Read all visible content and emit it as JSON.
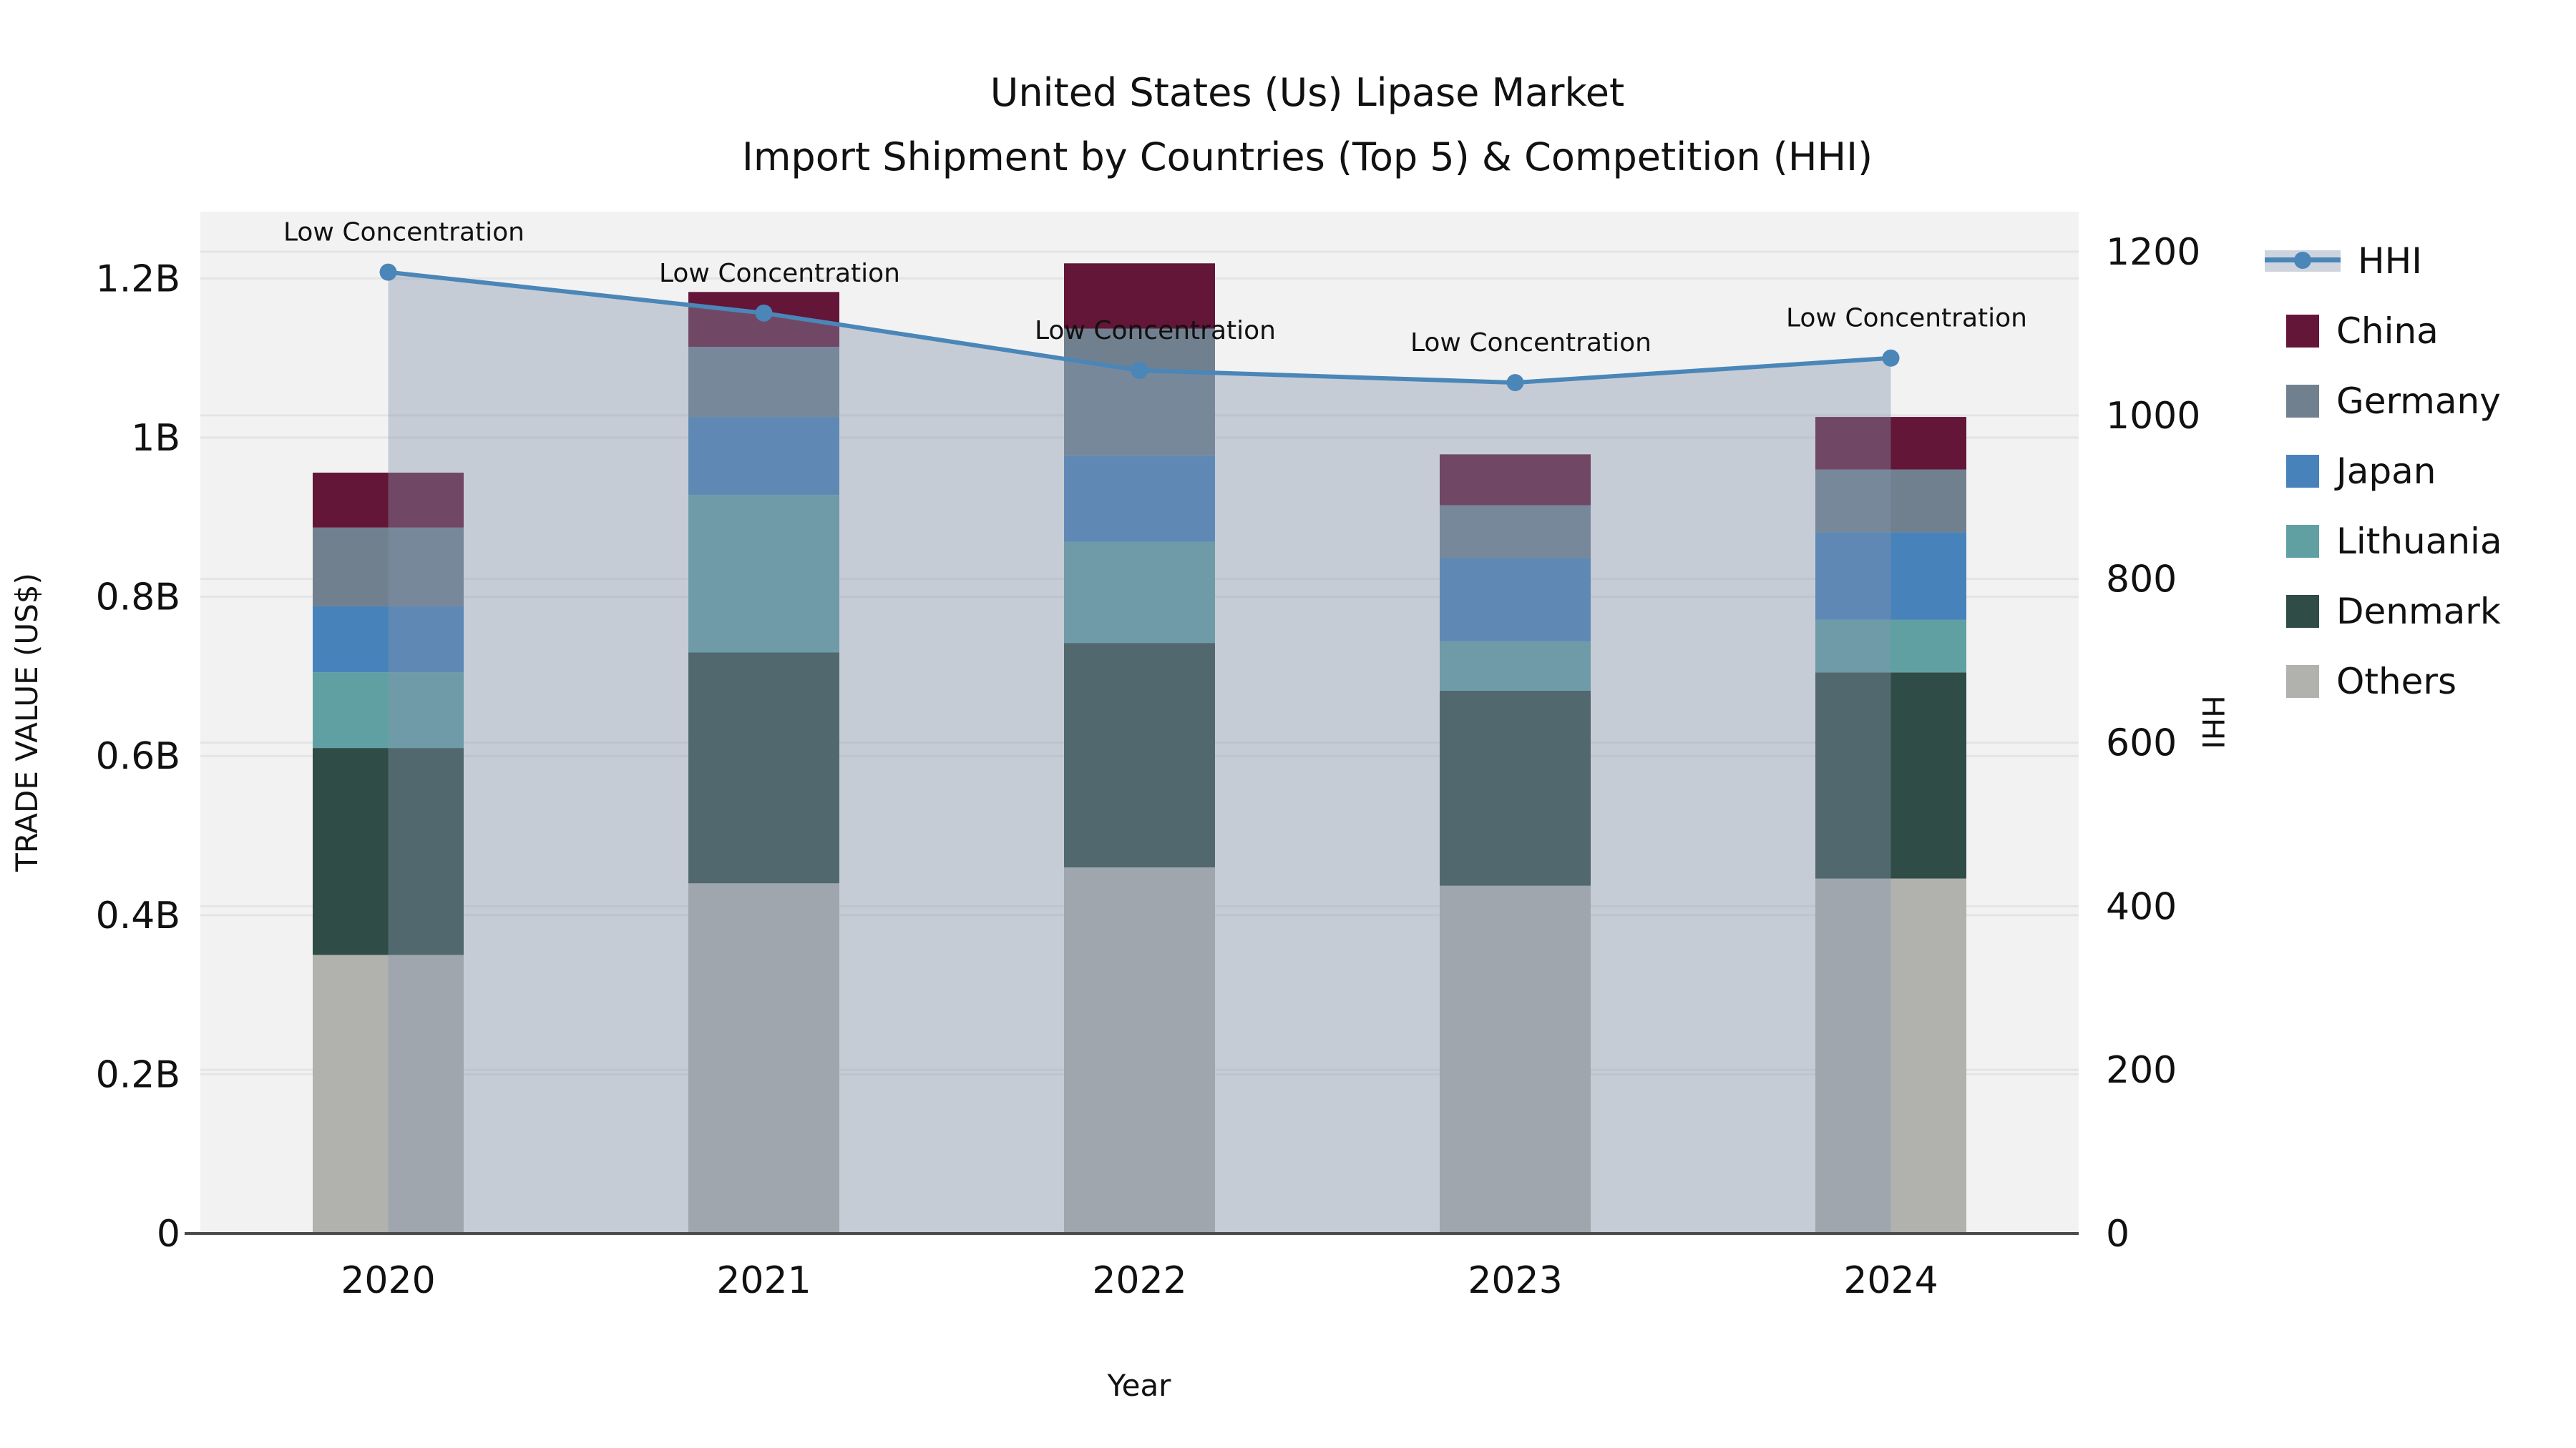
{
  "title": {
    "line1": "United States (Us) Lipase Market",
    "line2": "Import Shipment by Countries (Top 5) & Competition (HHI)"
  },
  "axes": {
    "y_left": {
      "label": "TRADE VALUE (US$)",
      "ticks": [
        {
          "v": 0.0,
          "label": "0"
        },
        {
          "v": 0.2,
          "label": "0.2B"
        },
        {
          "v": 0.4,
          "label": "0.4B"
        },
        {
          "v": 0.6,
          "label": "0.6B"
        },
        {
          "v": 0.8,
          "label": "0.8B"
        },
        {
          "v": 1.0,
          "label": "1B"
        },
        {
          "v": 1.2,
          "label": "1.2B"
        }
      ],
      "range": [
        0,
        1.285
      ]
    },
    "y_right": {
      "label": "HHI",
      "ticks": [
        {
          "v": 0,
          "label": "0"
        },
        {
          "v": 200,
          "label": "200"
        },
        {
          "v": 400,
          "label": "400"
        },
        {
          "v": 600,
          "label": "600"
        },
        {
          "v": 800,
          "label": "800"
        },
        {
          "v": 1000,
          "label": "1000"
        },
        {
          "v": 1200,
          "label": "1200"
        }
      ],
      "range": [
        0,
        1250
      ]
    },
    "x": {
      "label": "Year"
    }
  },
  "chart_data": {
    "type": "bar",
    "subtype": "stacked-bars-with-line-combo",
    "categories": [
      "2020",
      "2021",
      "2022",
      "2023",
      "2024"
    ],
    "value_unit": "billions US$",
    "series": [
      {
        "name": "China",
        "values": [
          0.069,
          0.069,
          0.082,
          0.064,
          0.066
        ]
      },
      {
        "name": "Germany",
        "values": [
          0.099,
          0.088,
          0.16,
          0.066,
          0.079
        ]
      },
      {
        "name": "Japan",
        "values": [
          0.083,
          0.098,
          0.108,
          0.105,
          0.11
        ]
      },
      {
        "name": "Lithuania",
        "values": [
          0.095,
          0.198,
          0.127,
          0.062,
          0.066
        ]
      },
      {
        "name": "Denmark",
        "values": [
          0.26,
          0.29,
          0.282,
          0.245,
          0.259
        ]
      },
      {
        "name": "Others",
        "values": [
          0.35,
          0.44,
          0.46,
          0.437,
          0.446
        ]
      }
    ],
    "stack_order_bottom_to_top": [
      "Others",
      "Denmark",
      "Lithuania",
      "Japan",
      "Germany",
      "China"
    ],
    "bar_totals": [
      0.956,
      1.183,
      1.219,
      0.979,
      1.026
    ],
    "line_series": {
      "name": "HHI",
      "axis": "right",
      "values": [
        1175,
        1125,
        1055,
        1040,
        1070
      ],
      "area_fill_under_line": true
    },
    "annotations": [
      {
        "x": "2020",
        "text": "Low Concentration"
      },
      {
        "x": "2021",
        "text": "Low Concentration"
      },
      {
        "x": "2022",
        "text": "Low Concentration"
      },
      {
        "x": "2023",
        "text": "Low Concentration"
      },
      {
        "x": "2024",
        "text": "Low Concentration"
      }
    ],
    "title": "United States (Us) Lipase Market Import Shipment by Countries (Top 5) & Competition (HHI)",
    "xlabel": "Year",
    "ylabel_left": "TRADE VALUE (US$)",
    "ylabel_right": "HHI",
    "grid": true,
    "legend_position": "right"
  },
  "legend": {
    "items": [
      {
        "label": "HHI"
      },
      {
        "label": "China"
      },
      {
        "label": "Germany"
      },
      {
        "label": "Japan"
      },
      {
        "label": "Lithuania"
      },
      {
        "label": "Denmark"
      },
      {
        "label": "Others"
      }
    ]
  },
  "colors": {
    "China": "#631638",
    "Germany": "#71808f",
    "Japan": "#4783ba",
    "Lithuania": "#60a0a3",
    "Denmark": "#2f4c47",
    "Others": "#b1b2ad",
    "hhi_line": "#4a86b8",
    "area_fill": "rgba(133,148,172,0.40)",
    "area_fill_over_white": "#ced4de",
    "plot_bg": "#f2f2f2",
    "grid_line": "#e4e4e4",
    "axis_line": "#4c4c4c",
    "text": "#111111"
  }
}
